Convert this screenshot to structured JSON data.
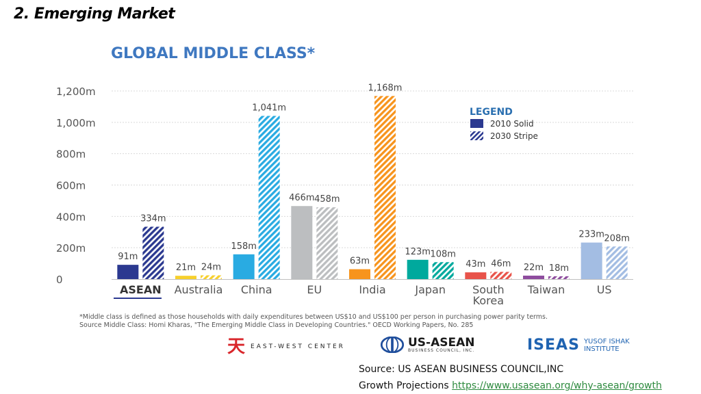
{
  "slide": {
    "title": "2. Emerging Market"
  },
  "chart_data": {
    "type": "bar",
    "title": "GLOBAL MIDDLE CLASS*",
    "xlabel": "",
    "ylabel": "",
    "ylim": [
      0,
      1200
    ],
    "grid": true,
    "y_ticks": [
      "0",
      "200m",
      "400m",
      "600m",
      "800m",
      "1,000m",
      "1,200m"
    ],
    "categories": [
      "ASEAN",
      "Australia",
      "China",
      "EU",
      "India",
      "Japan",
      "South Korea",
      "Taiwan",
      "US"
    ],
    "category_colors": [
      "#2b3990",
      "#f7d02c",
      "#29abe2",
      "#bcbec0",
      "#f7941d",
      "#00a99d",
      "#e8534a",
      "#8e4c9e",
      "#a3bde3"
    ],
    "series": [
      {
        "name": "2010 Solid",
        "values": [
          91,
          21,
          158,
          466,
          63,
          123,
          43,
          22,
          233
        ],
        "labels": [
          "91m",
          "21m",
          "158m",
          "466m",
          "63m",
          "123m",
          "43m",
          "22m",
          "233m"
        ]
      },
      {
        "name": "2030 Stripe",
        "values": [
          334,
          24,
          1041,
          458,
          1168,
          108,
          46,
          18,
          208
        ],
        "labels": [
          "334m",
          "24m",
          "1,041m",
          "458m",
          "1,168m",
          "108m",
          "46m",
          "18m",
          "208m"
        ]
      }
    ],
    "legend": {
      "title": "LEGEND",
      "placement": "top-right"
    }
  },
  "footnote": {
    "line1": "*Middle class is defined as those households with daily expenditures between US$10 and US$100 per person in purchasing power parity terms.",
    "line2": "Source Middle Class: Homi Kharas, \"The Emerging Middle Class in Developing Countries.\" OECD Working Papers, No. 285"
  },
  "logos": {
    "ewc": "EAST-WEST CENTER",
    "usasean_main": "US-ASEAN",
    "usasean_sub": "BUSINESS COUNCIL, INC.",
    "iseas_main": "ISEAS",
    "iseas_sub1": "YUSOF ISHAK",
    "iseas_sub2": "INSTITUTE"
  },
  "source": {
    "line1": "Source: US ASEAN BUSINESS COUNCIL,INC",
    "line2_prefix": "Growth Projections ",
    "link": "https://www.usasean.org/why-asean/growth"
  }
}
